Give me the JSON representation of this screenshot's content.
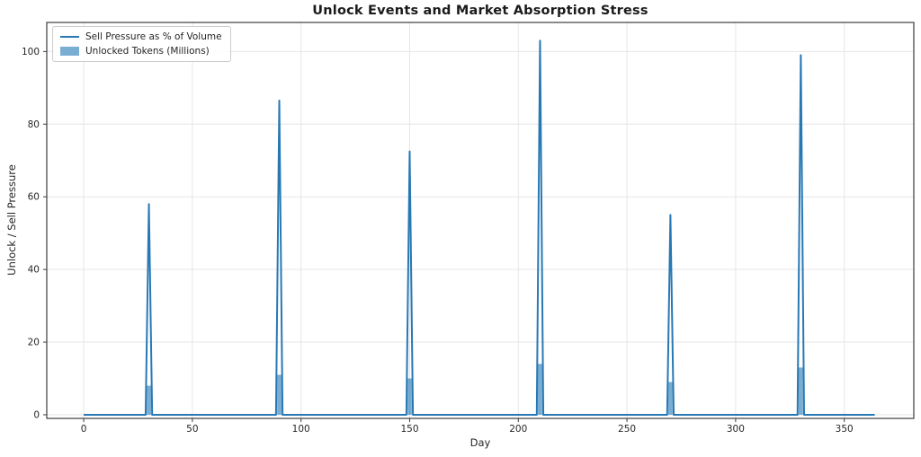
{
  "chart_data": {
    "type": "line",
    "title": "Unlock Events and Market Absorption Stress",
    "xlabel": "Day",
    "ylabel": "Unlock / Sell Pressure",
    "xlim": [
      -17,
      382
    ],
    "ylim": [
      -1,
      108
    ],
    "xticks": [
      0,
      50,
      100,
      150,
      200,
      250,
      300,
      350
    ],
    "yticks": [
      0,
      20,
      40,
      60,
      80,
      100
    ],
    "grid": true,
    "legend_position": "upper left",
    "x_data_range": [
      0,
      364
    ],
    "unlock_days": [
      30,
      90,
      150,
      210,
      270,
      330
    ],
    "series": [
      {
        "name": "Sell Pressure as % of Volume",
        "type": "line",
        "color": "#2878b4",
        "baseline": 0,
        "spike_halfwidth_days": 1.5,
        "points": [
          {
            "day": 30,
            "value": 58
          },
          {
            "day": 90,
            "value": 86.5
          },
          {
            "day": 150,
            "value": 72.5
          },
          {
            "day": 210,
            "value": 103
          },
          {
            "day": 270,
            "value": 55
          },
          {
            "day": 330,
            "value": 99
          }
        ]
      },
      {
        "name": "Unlocked Tokens (Millions)",
        "type": "bar",
        "color": "rgba(31,119,180,0.6)",
        "bar_width_days": 2,
        "points": [
          {
            "day": 30,
            "value": 8
          },
          {
            "day": 90,
            "value": 11
          },
          {
            "day": 150,
            "value": 10
          },
          {
            "day": 210,
            "value": 14
          },
          {
            "day": 270,
            "value": 9
          },
          {
            "day": 330,
            "value": 13
          }
        ]
      }
    ],
    "colors": {
      "line": "#2878b4",
      "bar": "rgba(31,119,180,0.6)",
      "grid": "#e6e6e6",
      "spine": "#3c3c3c",
      "text": "#262626"
    }
  }
}
